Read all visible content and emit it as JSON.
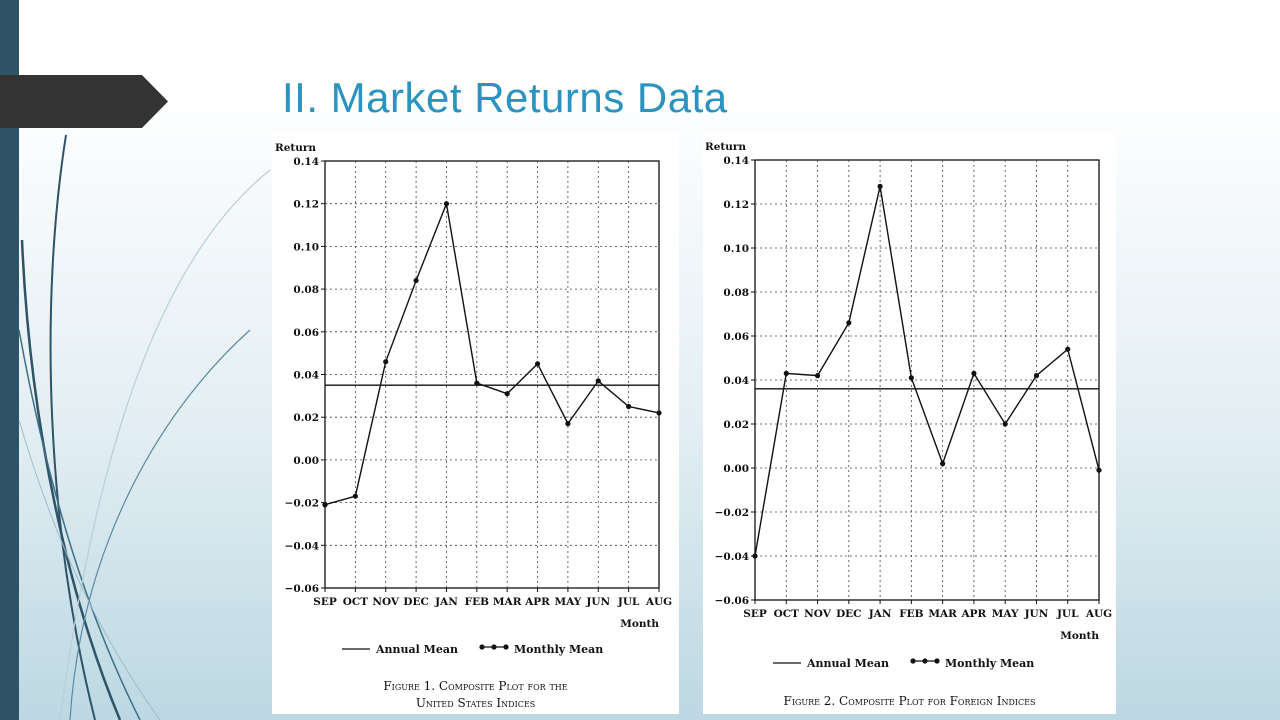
{
  "slide": {
    "title": "II. Market Returns Data"
  },
  "chart_data": [
    {
      "type": "line",
      "caption": "Figure 1. Composite Plot for the United States Indices",
      "caption_line1": "Figure 1. Composite Plot for the",
      "caption_line2": "United States Indices",
      "ylabel": "Return",
      "xlabel": "Month",
      "ylim": [
        -0.06,
        0.14
      ],
      "yticks": [
        "0.14",
        "0.12",
        "0.10",
        "0.08",
        "0.06",
        "0.04",
        "0.02",
        "0.00",
        "−0.02",
        "−0.04",
        "−0.06"
      ],
      "categories": [
        "SEP",
        "OCT",
        "NOV",
        "DEC",
        "JAN",
        "FEB",
        "MAR",
        "APR",
        "MAY",
        "JUN",
        "JUL",
        "AUG"
      ],
      "grid": true,
      "legend_position": "bottom",
      "series": [
        {
          "name": "Monthly Mean",
          "values": [
            -0.021,
            -0.017,
            0.046,
            0.084,
            0.12,
            0.036,
            0.031,
            0.045,
            0.017,
            0.037,
            0.025,
            0.022
          ]
        },
        {
          "name": "Annual Mean",
          "values": [
            0.035,
            0.035,
            0.035,
            0.035,
            0.035,
            0.035,
            0.035,
            0.035,
            0.035,
            0.035,
            0.035,
            0.035
          ]
        }
      ]
    },
    {
      "type": "line",
      "caption": "Figure 2. Composite Plot for Foreign Indices",
      "caption_line1": "Figure 2. Composite Plot for Foreign Indices",
      "ylabel": "Return",
      "xlabel": "Month",
      "ylim": [
        -0.06,
        0.14
      ],
      "yticks": [
        "0.14",
        "0.12",
        "0.10",
        "0.08",
        "0.06",
        "0.04",
        "0.02",
        "0.00",
        "−0.02",
        "−0.04",
        "−0.06"
      ],
      "categories": [
        "SEP",
        "OCT",
        "NOV",
        "DEC",
        "JAN",
        "FEB",
        "MAR",
        "APR",
        "MAY",
        "JUN",
        "JUL",
        "AUG"
      ],
      "grid": true,
      "legend_position": "bottom",
      "series": [
        {
          "name": "Monthly Mean",
          "values": [
            -0.04,
            0.043,
            0.042,
            0.066,
            0.128,
            0.041,
            0.002,
            0.043,
            0.02,
            0.042,
            0.054,
            -0.001
          ]
        },
        {
          "name": "Annual Mean",
          "values": [
            0.036,
            0.036,
            0.036,
            0.036,
            0.036,
            0.036,
            0.036,
            0.036,
            0.036,
            0.036,
            0.036,
            0.036
          ]
        }
      ]
    }
  ]
}
